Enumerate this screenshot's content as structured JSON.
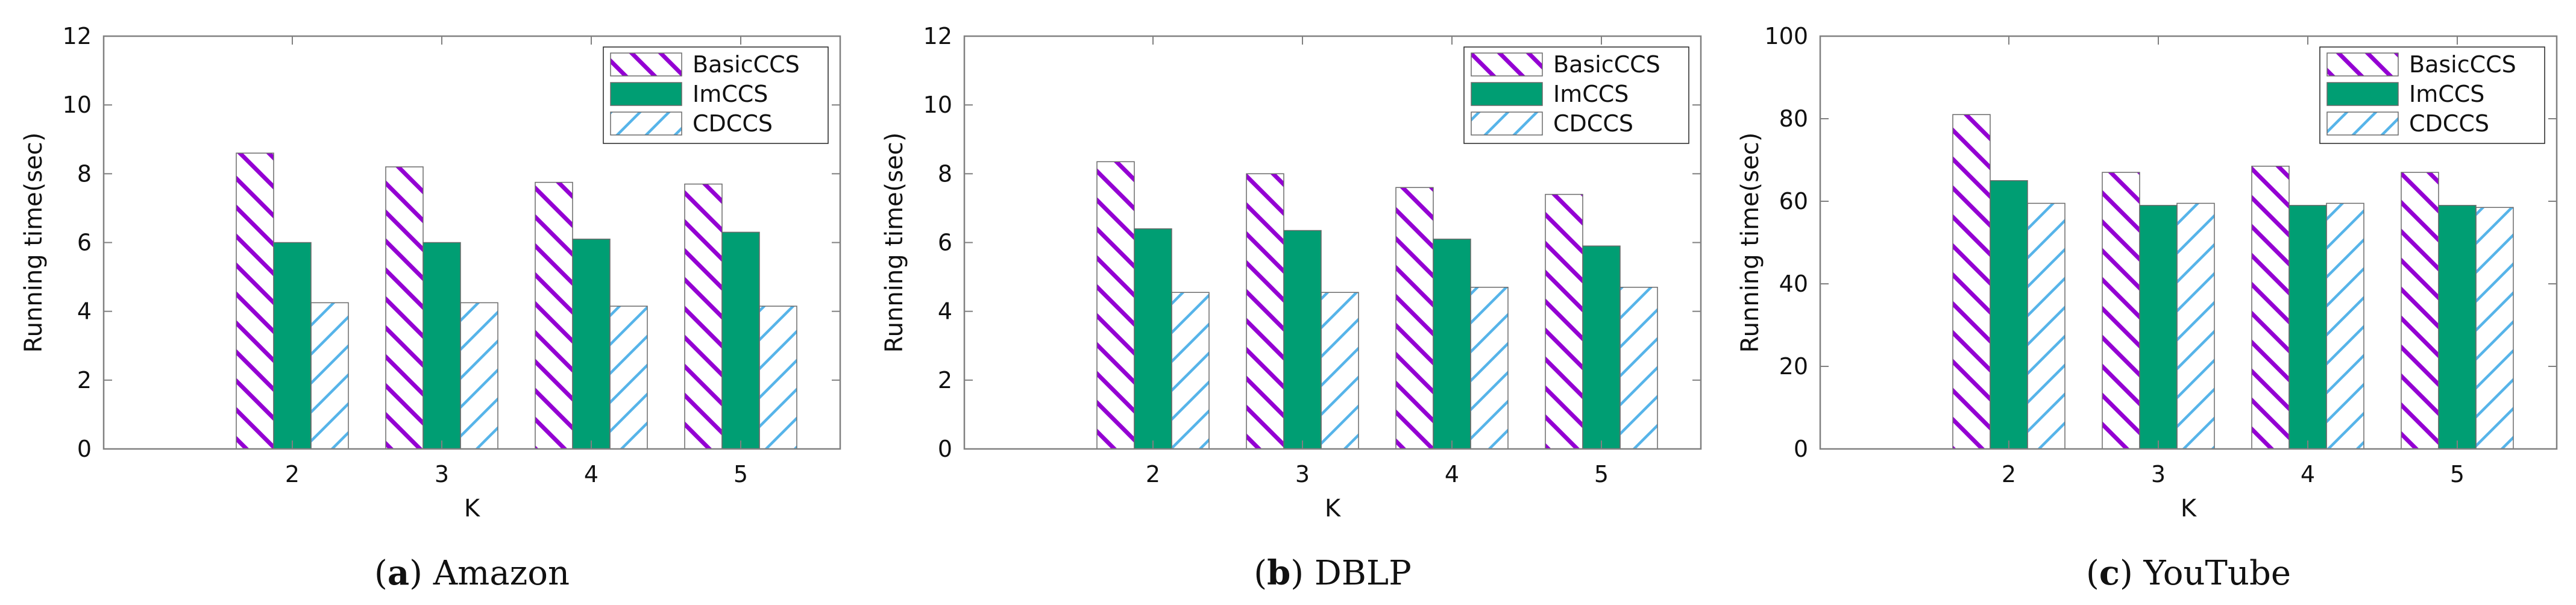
{
  "figure": {
    "colors": {
      "BasicCCS": "#9400D3",
      "ImCCS": "#009E73",
      "CDCCS": "#56B4E9",
      "axis": "#808080"
    }
  },
  "chart_data": [
    {
      "type": "bar",
      "caption": {
        "label": "a",
        "text": "Amazon"
      },
      "xlabel": "K",
      "ylabel": "Running time(sec)",
      "categories": [
        "2",
        "3",
        "4",
        "5"
      ],
      "ylim": [
        0,
        12
      ],
      "yticks": [
        0,
        2,
        4,
        6,
        8,
        10,
        12
      ],
      "legend_position": "top-right",
      "series": [
        {
          "name": "BasicCCS",
          "values": [
            8.6,
            8.2,
            7.75,
            7.7
          ]
        },
        {
          "name": "ImCCS",
          "values": [
            6.0,
            6.0,
            6.1,
            6.3
          ]
        },
        {
          "name": "CDCCS",
          "values": [
            4.25,
            4.25,
            4.15,
            4.15
          ]
        }
      ]
    },
    {
      "type": "bar",
      "caption": {
        "label": "b",
        "text": "DBLP"
      },
      "xlabel": "K",
      "ylabel": "Running time(sec)",
      "categories": [
        "2",
        "3",
        "4",
        "5"
      ],
      "ylim": [
        0,
        12
      ],
      "yticks": [
        0,
        2,
        4,
        6,
        8,
        10,
        12
      ],
      "legend_position": "top-right",
      "series": [
        {
          "name": "BasicCCS",
          "values": [
            8.35,
            8.0,
            7.6,
            7.4
          ]
        },
        {
          "name": "ImCCS",
          "values": [
            6.4,
            6.35,
            6.1,
            5.9
          ]
        },
        {
          "name": "CDCCS",
          "values": [
            4.55,
            4.55,
            4.7,
            4.7
          ]
        }
      ]
    },
    {
      "type": "bar",
      "caption": {
        "label": "c",
        "text": "YouTube"
      },
      "xlabel": "K",
      "ylabel": "Running time(sec)",
      "categories": [
        "2",
        "3",
        "4",
        "5"
      ],
      "ylim": [
        0,
        100
      ],
      "yticks": [
        0,
        20,
        40,
        60,
        80,
        100
      ],
      "legend_position": "top-right",
      "series": [
        {
          "name": "BasicCCS",
          "values": [
            81,
            67,
            68.5,
            67
          ]
        },
        {
          "name": "ImCCS",
          "values": [
            65,
            59,
            59,
            59
          ]
        },
        {
          "name": "CDCCS",
          "values": [
            59.5,
            59.5,
            59.5,
            58.5
          ]
        }
      ]
    }
  ]
}
